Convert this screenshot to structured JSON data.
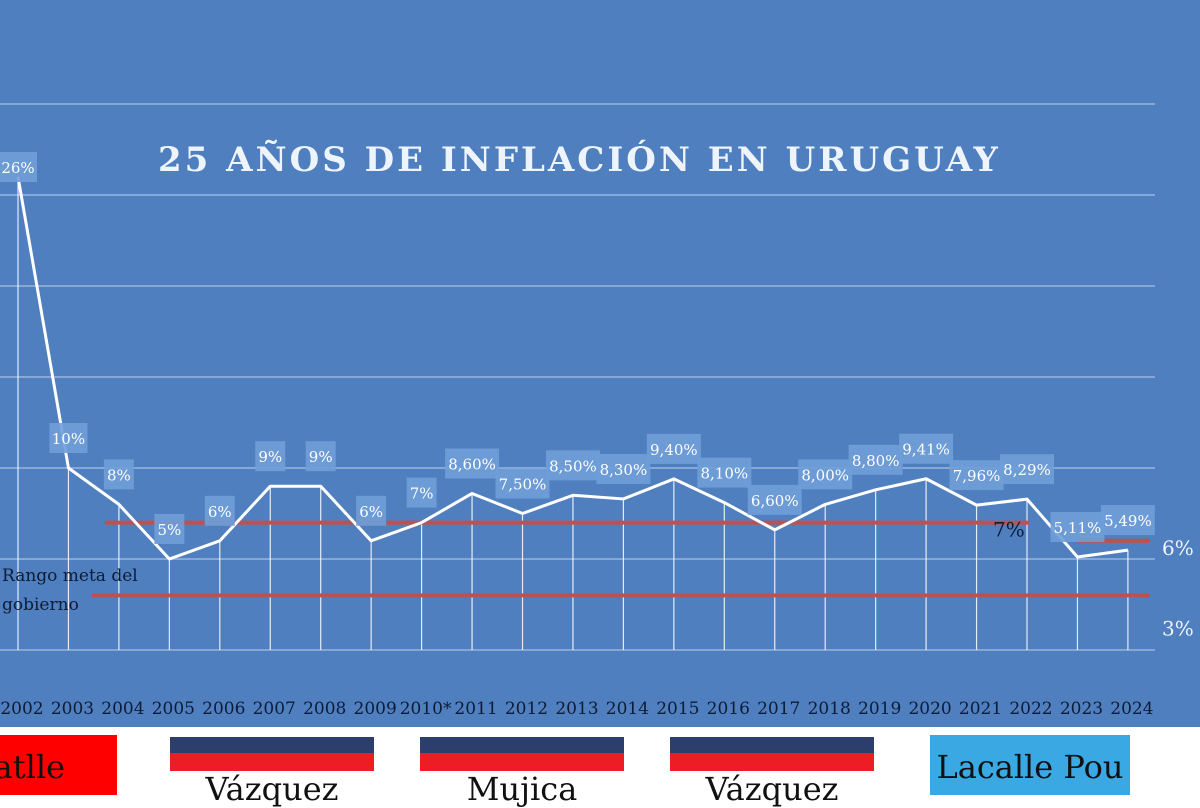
{
  "colors": {
    "background": "#4f7fbf",
    "grid": "#a9c4e6",
    "line": "#ffffff",
    "label_box": "#6f9fd8",
    "label_text": "#ffffff",
    "target_line": "#c0504d",
    "axis_text": "#0d1c36",
    "batlle": "#ff0000",
    "frente_dark": "#2c3e6c",
    "frente_red": "#ee1c25",
    "lacalle": "#3aa8e3"
  },
  "chart_data": {
    "type": "line",
    "title": "25 AÑOS DE INFLACIÓN EN URUGUAY",
    "categories": [
      "2002",
      "2003",
      "2004",
      "2005",
      "2006",
      "2007",
      "2008",
      "2009",
      "2010*",
      "2011",
      "2012",
      "2013",
      "2014",
      "2015",
      "2016",
      "2017",
      "2018",
      "2019",
      "2020",
      "2021",
      "2022",
      "2023",
      "2024"
    ],
    "values": [
      26,
      10,
      8,
      5,
      6,
      9,
      9,
      6,
      7,
      8.6,
      7.5,
      8.5,
      8.3,
      9.4,
      8.1,
      6.6,
      8.0,
      8.8,
      9.41,
      7.96,
      8.29,
      5.11,
      5.49
    ],
    "data_labels": [
      "26%",
      "10%",
      "8%",
      "5%",
      "6%",
      "9%",
      "9%",
      "6%",
      "7%",
      "8,60%",
      "7,50%",
      "8,50%",
      "8,30%",
      "9,40%",
      "8,10%",
      "6,60%",
      "8,00%",
      "8,80%",
      "9,41%",
      "7,96%",
      "8,29%",
      "5,11%",
      "5,49%"
    ],
    "ylim": [
      0,
      30
    ],
    "grid": true,
    "target_range": {
      "label": "Rango meta del gobierno",
      "segments": [
        {
          "from": "2004",
          "to": "2022",
          "upper": 7,
          "lower": 3,
          "upper_label": "7%"
        },
        {
          "from": "2023",
          "to": "2024",
          "upper": 6,
          "lower": 3,
          "upper_label": "6%",
          "lower_label": "3%"
        }
      ]
    },
    "governments": [
      {
        "name": "Batlle",
        "shown_text": "atlle",
        "from": "2002",
        "to": "2004"
      },
      {
        "name": "Vázquez",
        "shown_text": "Vázquez",
        "from": "2005",
        "to": "2009"
      },
      {
        "name": "Mujica",
        "shown_text": "Mujica",
        "from": "2010*",
        "to": "2014"
      },
      {
        "name": "Vázquez",
        "shown_text": "Vázquez",
        "from": "2015",
        "to": "2019"
      },
      {
        "name": "Lacalle Pou",
        "shown_text": "Lacalle Pou",
        "from": "2020",
        "to": "2024"
      }
    ]
  }
}
